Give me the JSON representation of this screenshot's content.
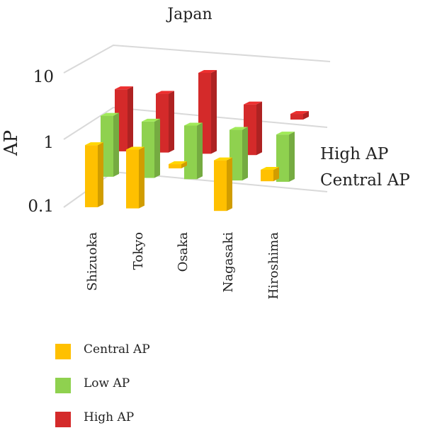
{
  "chart_data": {
    "type": "bar",
    "subtype": "3d-clustered-column",
    "title": "Japan",
    "ylabel": "AP",
    "yscale": "log",
    "ylim": [
      0.1,
      10
    ],
    "yticks": [
      "0.1",
      "1",
      "10"
    ],
    "grid": true,
    "categories": [
      "Shizuoka",
      "Tokyo",
      "Osaka",
      "Nagasaki",
      "Hiroshima"
    ],
    "series": [
      {
        "name": "Central AP",
        "color": "#FFC000",
        "depth_label": "Central AP",
        "values": [
          0.9,
          0.8,
          0.5,
          0.6,
          0.45
        ]
      },
      {
        "name": "Low AP",
        "color": "#8FD14F",
        "depth_label": "",
        "values": [
          1.3,
          1.1,
          1.0,
          0.9,
          0.8
        ]
      },
      {
        "name": "High AP",
        "color": "#D42A2A",
        "depth_label": "High AP",
        "values": [
          1.8,
          1.6,
          3.5,
          1.2,
          0.9
        ]
      }
    ],
    "legend_position": "bottom-left"
  }
}
